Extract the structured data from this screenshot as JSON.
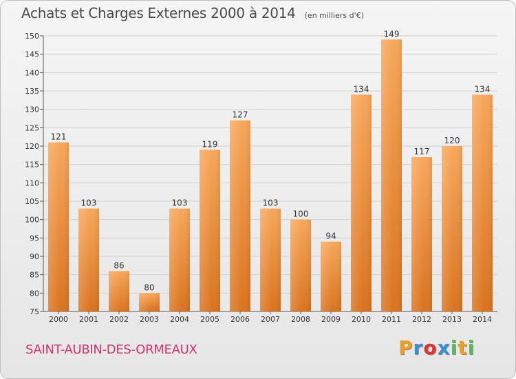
{
  "title": "Achats et Charges Externes 2000 à 2014",
  "subtitle": "(en milliers d'€)",
  "commune": "SAINT-AUBIN-DES-ORMEAUX",
  "brand": {
    "letters": [
      "P",
      "r",
      "o",
      "x",
      "i",
      "t",
      "i"
    ],
    "colors": [
      "#f0a020",
      "#3a8fd0",
      "#e3342f",
      "#3a8fd0",
      "#5cb85c",
      "#f0a020",
      "#5cb85c"
    ]
  },
  "colors": {
    "bar_top": "#f7a75a",
    "bar_bottom": "#d9731e",
    "grid": "#cfcfcf",
    "text": "#333333",
    "accent": "#d0336a"
  },
  "chart_data": {
    "type": "bar",
    "categories": [
      "2000",
      "2001",
      "2002",
      "2003",
      "2004",
      "2005",
      "2006",
      "2007",
      "2008",
      "2009",
      "2010",
      "2011",
      "2012",
      "2013",
      "2014"
    ],
    "values": [
      121,
      103,
      86,
      80,
      103,
      119,
      127,
      103,
      100,
      94,
      134,
      149,
      117,
      120,
      134
    ],
    "ylim": [
      75,
      150
    ],
    "yticks": [
      75,
      80,
      85,
      90,
      95,
      100,
      105,
      110,
      115,
      120,
      125,
      130,
      135,
      140,
      145,
      150
    ],
    "grid": true,
    "data_labels": true
  }
}
